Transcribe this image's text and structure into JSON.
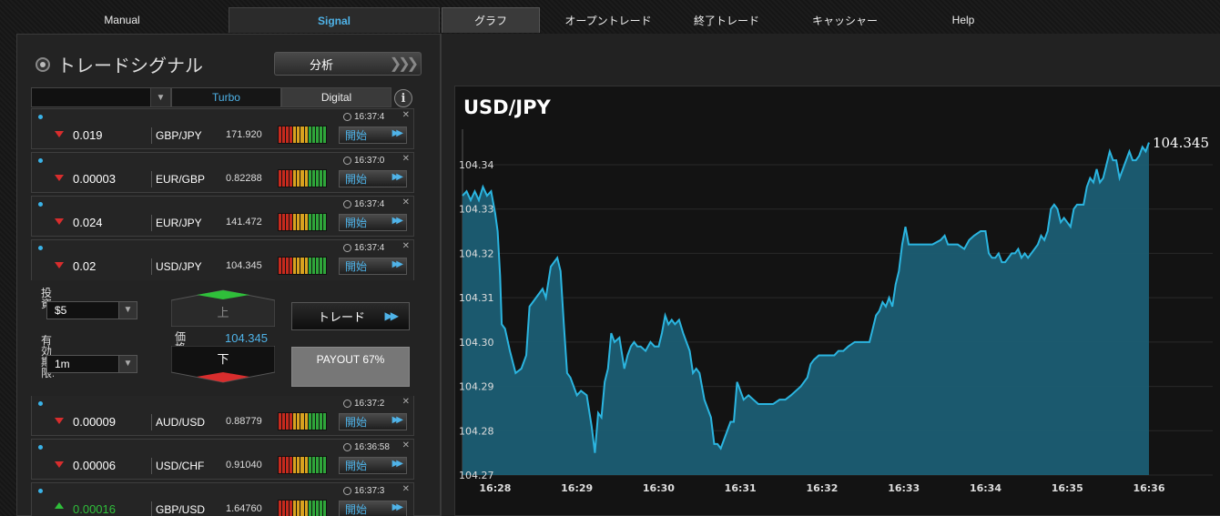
{
  "nav": {
    "tabs": [
      "Manual",
      "Signal",
      "グラフ",
      "オープントレード",
      "終了トレード",
      "キャッシャー",
      "Help"
    ]
  },
  "signals": {
    "title": "トレードシグナル",
    "analyze_label": "分析",
    "filter_tabs": [
      "Turbo",
      "Digital"
    ],
    "rows": [
      {
        "dir": "down",
        "change": "0.019",
        "pair": "GBP/JPY",
        "price": "171.920",
        "time": "16:37:4",
        "start": "開始"
      },
      {
        "dir": "down",
        "change": "0.00003",
        "pair": "EUR/GBP",
        "price": "0.82288",
        "time": "16:37:0",
        "start": "開始"
      },
      {
        "dir": "down",
        "change": "0.024",
        "pair": "EUR/JPY",
        "price": "141.472",
        "time": "16:37:4",
        "start": "開始"
      },
      {
        "dir": "down",
        "change": "0.02",
        "pair": "USD/JPY",
        "price": "104.345",
        "time": "16:37:4",
        "start": "開始"
      },
      {
        "dir": "down",
        "change": "0.00009",
        "pair": "AUD/USD",
        "price": "0.88779",
        "time": "16:37:2",
        "start": "開始"
      },
      {
        "dir": "down",
        "change": "0.00006",
        "pair": "USD/CHF",
        "price": "0.91040",
        "time": "16:36:58",
        "start": "開始"
      },
      {
        "dir": "up",
        "change": "0.00016",
        "pair": "GBP/USD",
        "price": "1.64760",
        "time": "16:37:3",
        "start": "開始"
      }
    ],
    "meter_colors": [
      "#c62a1e",
      "#c62a1e",
      "#c62a1e",
      "#c62a1e",
      "#d9a21f",
      "#d9a21f",
      "#d9a21f",
      "#d9a21f",
      "#2fa63a",
      "#2fa63a",
      "#2fa63a",
      "#2fa63a",
      "#2fa63a"
    ]
  },
  "trade": {
    "invest_label": "投資:",
    "invest_value": "$5",
    "expiry_label": "有効期限:",
    "expiry_value": "1m",
    "up_label": "上",
    "down_label": "下",
    "rate_label": "価格",
    "rate_value": "104.345",
    "trade_label": "トレード",
    "payout_label": "PAYOUT 67%"
  },
  "chart_data": {
    "type": "area",
    "title": "USD/JPY",
    "last_price": "104.345",
    "color": "#2bb5e0",
    "fill": "#1b5d73",
    "ylim": [
      104.27,
      104.348
    ],
    "yticks": [
      "104.27",
      "104.28",
      "104.29",
      "104.30",
      "104.31",
      "104.32",
      "104.33",
      "104.34"
    ],
    "xticks": [
      "16:28",
      "16:29",
      "16:30",
      "16:31",
      "16:32",
      "16:33",
      "16:34",
      "16:35",
      "16:36"
    ],
    "x_minutes_start": 27.6,
    "x_minutes_end": 36.78,
    "series": [
      [
        27.6,
        104.333
      ],
      [
        27.65,
        104.334
      ],
      [
        27.7,
        104.332
      ],
      [
        27.75,
        104.334
      ],
      [
        27.8,
        104.332
      ],
      [
        27.85,
        104.335
      ],
      [
        27.9,
        104.333
      ],
      [
        27.95,
        104.334
      ],
      [
        28.0,
        104.329
      ],
      [
        28.03,
        104.325
      ],
      [
        28.06,
        104.315
      ],
      [
        28.08,
        104.304
      ],
      [
        28.12,
        104.303
      ],
      [
        28.18,
        104.298
      ],
      [
        28.25,
        104.293
      ],
      [
        28.32,
        104.294
      ],
      [
        28.38,
        104.297
      ],
      [
        28.42,
        104.308
      ],
      [
        28.5,
        104.31
      ],
      [
        28.58,
        104.312
      ],
      [
        28.62,
        104.31
      ],
      [
        28.68,
        104.317
      ],
      [
        28.72,
        104.318
      ],
      [
        28.76,
        104.319
      ],
      [
        28.8,
        104.316
      ],
      [
        28.84,
        104.304
      ],
      [
        28.88,
        104.293
      ],
      [
        28.92,
        104.292
      ],
      [
        28.96,
        104.29
      ],
      [
        29.0,
        104.288
      ],
      [
        29.05,
        104.289
      ],
      [
        29.12,
        104.288
      ],
      [
        29.18,
        104.281
      ],
      [
        29.22,
        104.275
      ],
      [
        29.26,
        104.284
      ],
      [
        29.3,
        104.283
      ],
      [
        29.34,
        104.291
      ],
      [
        29.38,
        104.294
      ],
      [
        29.42,
        104.302
      ],
      [
        29.46,
        104.3
      ],
      [
        29.52,
        104.301
      ],
      [
        29.58,
        104.294
      ],
      [
        29.62,
        104.297
      ],
      [
        29.66,
        104.299
      ],
      [
        29.7,
        104.3
      ],
      [
        29.74,
        104.299
      ],
      [
        29.78,
        104.299
      ],
      [
        29.84,
        104.298
      ],
      [
        29.9,
        104.3
      ],
      [
        29.95,
        104.299
      ],
      [
        30.0,
        104.299
      ],
      [
        30.04,
        104.302
      ],
      [
        30.08,
        104.306
      ],
      [
        30.12,
        104.304
      ],
      [
        30.16,
        104.305
      ],
      [
        30.2,
        104.304
      ],
      [
        30.25,
        104.305
      ],
      [
        30.3,
        104.302
      ],
      [
        30.34,
        104.3
      ],
      [
        30.38,
        104.298
      ],
      [
        30.42,
        104.293
      ],
      [
        30.46,
        104.294
      ],
      [
        30.5,
        104.293
      ],
      [
        30.56,
        104.287
      ],
      [
        30.6,
        104.285
      ],
      [
        30.64,
        104.283
      ],
      [
        30.68,
        104.277
      ],
      [
        30.72,
        104.277
      ],
      [
        30.76,
        104.276
      ],
      [
        30.8,
        104.278
      ],
      [
        30.84,
        104.28
      ],
      [
        30.88,
        104.282
      ],
      [
        30.92,
        104.282
      ],
      [
        30.96,
        104.291
      ],
      [
        31.0,
        104.289
      ],
      [
        31.04,
        104.287
      ],
      [
        31.1,
        104.288
      ],
      [
        31.16,
        104.287
      ],
      [
        31.22,
        104.286
      ],
      [
        31.3,
        104.286
      ],
      [
        31.4,
        104.286
      ],
      [
        31.48,
        104.287
      ],
      [
        31.55,
        104.287
      ],
      [
        31.62,
        104.288
      ],
      [
        31.68,
        104.289
      ],
      [
        31.74,
        104.29
      ],
      [
        31.78,
        104.291
      ],
      [
        31.82,
        104.292
      ],
      [
        31.86,
        104.295
      ],
      [
        31.9,
        104.296
      ],
      [
        31.96,
        104.297
      ],
      [
        32.05,
        104.297
      ],
      [
        32.15,
        104.297
      ],
      [
        32.2,
        104.298
      ],
      [
        32.26,
        104.298
      ],
      [
        32.32,
        104.299
      ],
      [
        32.4,
        104.3
      ],
      [
        32.5,
        104.3
      ],
      [
        32.58,
        104.3
      ],
      [
        32.62,
        104.303
      ],
      [
        32.66,
        104.306
      ],
      [
        32.7,
        104.307
      ],
      [
        32.74,
        104.309
      ],
      [
        32.78,
        104.308
      ],
      [
        32.82,
        104.31
      ],
      [
        32.86,
        104.308
      ],
      [
        32.9,
        104.313
      ],
      [
        32.94,
        104.316
      ],
      [
        32.98,
        104.322
      ],
      [
        33.02,
        104.326
      ],
      [
        33.06,
        104.322
      ],
      [
        33.15,
        104.322
      ],
      [
        33.25,
        104.322
      ],
      [
        33.35,
        104.322
      ],
      [
        33.45,
        104.323
      ],
      [
        33.5,
        104.324
      ],
      [
        33.54,
        104.322
      ],
      [
        33.58,
        104.322
      ],
      [
        33.66,
        104.322
      ],
      [
        33.74,
        104.321
      ],
      [
        33.8,
        104.323
      ],
      [
        33.86,
        104.324
      ],
      [
        33.94,
        104.325
      ],
      [
        34.0,
        104.325
      ],
      [
        34.04,
        104.32
      ],
      [
        34.08,
        104.319
      ],
      [
        34.12,
        104.319
      ],
      [
        34.16,
        104.32
      ],
      [
        34.2,
        104.318
      ],
      [
        34.24,
        104.318
      ],
      [
        34.28,
        104.319
      ],
      [
        34.32,
        104.32
      ],
      [
        34.36,
        104.32
      ],
      [
        34.4,
        104.321
      ],
      [
        34.44,
        104.319
      ],
      [
        34.48,
        104.32
      ],
      [
        34.52,
        104.319
      ],
      [
        34.56,
        104.32
      ],
      [
        34.6,
        104.321
      ],
      [
        34.64,
        104.322
      ],
      [
        34.68,
        104.324
      ],
      [
        34.72,
        104.323
      ],
      [
        34.76,
        104.325
      ],
      [
        34.8,
        104.33
      ],
      [
        34.84,
        104.331
      ],
      [
        34.88,
        104.33
      ],
      [
        34.92,
        104.327
      ],
      [
        34.96,
        104.328
      ],
      [
        35.0,
        104.327
      ],
      [
        35.04,
        104.326
      ],
      [
        35.08,
        104.33
      ],
      [
        35.12,
        104.331
      ],
      [
        35.16,
        104.331
      ],
      [
        35.2,
        104.331
      ],
      [
        35.24,
        104.335
      ],
      [
        35.28,
        104.337
      ],
      [
        35.32,
        104.336
      ],
      [
        35.36,
        104.339
      ],
      [
        35.4,
        104.336
      ],
      [
        35.44,
        104.337
      ],
      [
        35.48,
        104.34
      ],
      [
        35.52,
        104.343
      ],
      [
        35.56,
        104.341
      ],
      [
        35.6,
        104.341
      ],
      [
        35.64,
        104.337
      ],
      [
        35.68,
        104.339
      ],
      [
        35.72,
        104.341
      ],
      [
        35.76,
        104.343
      ],
      [
        35.8,
        104.341
      ],
      [
        35.84,
        104.341
      ],
      [
        35.88,
        104.342
      ],
      [
        35.92,
        104.344
      ],
      [
        35.96,
        104.343
      ],
      [
        36.0,
        104.345
      ]
    ]
  }
}
